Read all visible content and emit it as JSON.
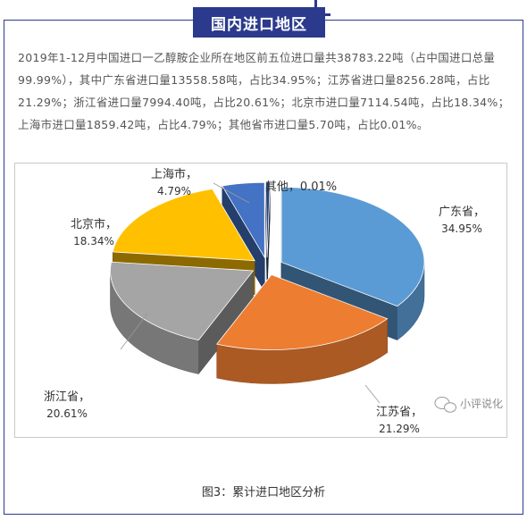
{
  "section_title": "国内进口地区",
  "description": "2019年1-12月中国进口一乙醇胺企业所在地区前五位进口量共38783.22吨（占中国进口总量99.99%），其中广东省进口量13558.58吨，占比34.95%；江苏省进口量8256.28吨，占比21.29%；浙江省进口量7994.40吨，占比20.61%；北京市进口量7114.54吨，占比18.34%；上海市进口量1859.42吨，占比4.79%；其他省市进口量5.70吨，占比0.01%。",
  "caption": "图3：累计进口地区分析",
  "watermark": "小评说化",
  "chart_data": {
    "type": "pie",
    "style": "3d-exploded",
    "categories": [
      "广东省",
      "江苏省",
      "浙江省",
      "北京市",
      "上海市",
      "其他"
    ],
    "values": [
      34.95,
      21.29,
      20.61,
      18.34,
      4.79,
      0.01
    ],
    "value_labels": [
      "34.95%",
      "21.29%",
      "20.61%",
      "18.34%",
      "4.79%",
      "0.01%"
    ],
    "colors": [
      "#5b9bd5",
      "#ed7d31",
      "#a5a5a5",
      "#ffc000",
      "#4472c4",
      "#264478"
    ],
    "legend": "none"
  }
}
